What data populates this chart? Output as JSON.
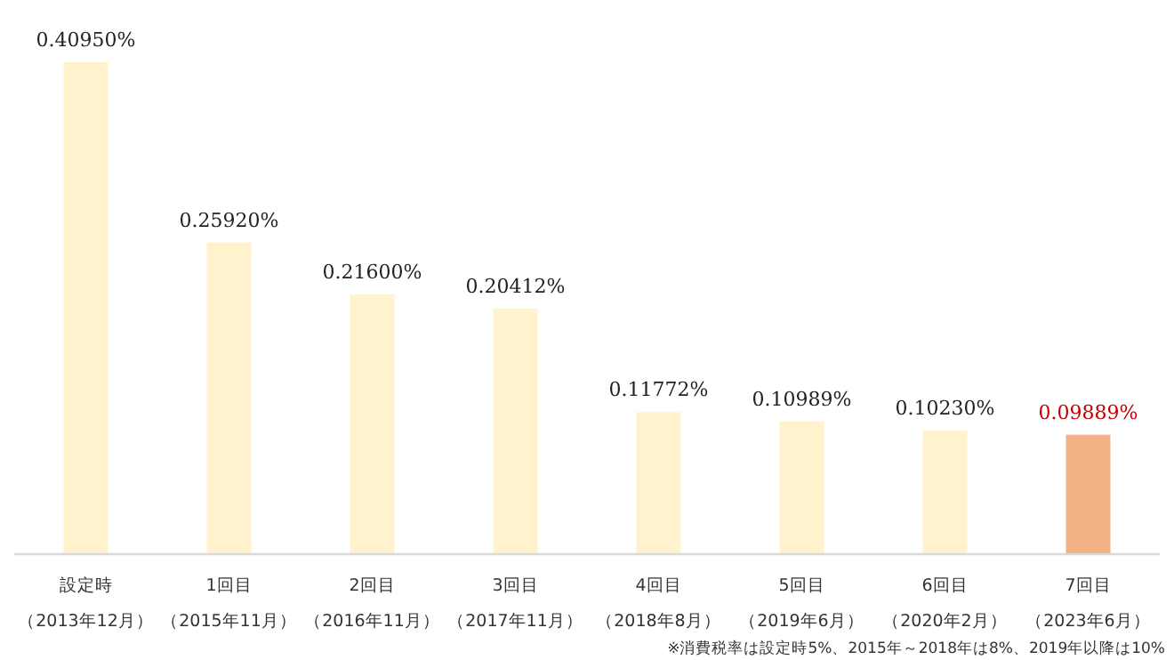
{
  "chart_data": {
    "type": "bar",
    "categories": [
      "設定時（2013年12月）",
      "1回目（2015年11月）",
      "2回目（2016年11月）",
      "3回目（2017年11月）",
      "4回目（2018年8月）",
      "5回目（2019年6月）",
      "6回目（2020年2月）",
      "7回目（2023年6月）"
    ],
    "values": [
      0.4095,
      0.2592,
      0.216,
      0.20412,
      0.11772,
      0.10989,
      0.1023,
      0.09889
    ],
    "value_labels": [
      "0.40950%",
      "0.25920%",
      "0.21600%",
      "0.20412%",
      "0.11772%",
      "0.10989%",
      "0.10230%",
      "0.09889%"
    ],
    "colors": [
      "#fff2cc",
      "#fff2cc",
      "#fff2cc",
      "#fff2cc",
      "#fff2cc",
      "#fff2cc",
      "#fff2cc",
      "#f4b183"
    ],
    "annotations": [
      "※消費税率は設定時5%、2015年～2018年は8%、2019年以降は10%"
    ]
  }
}
